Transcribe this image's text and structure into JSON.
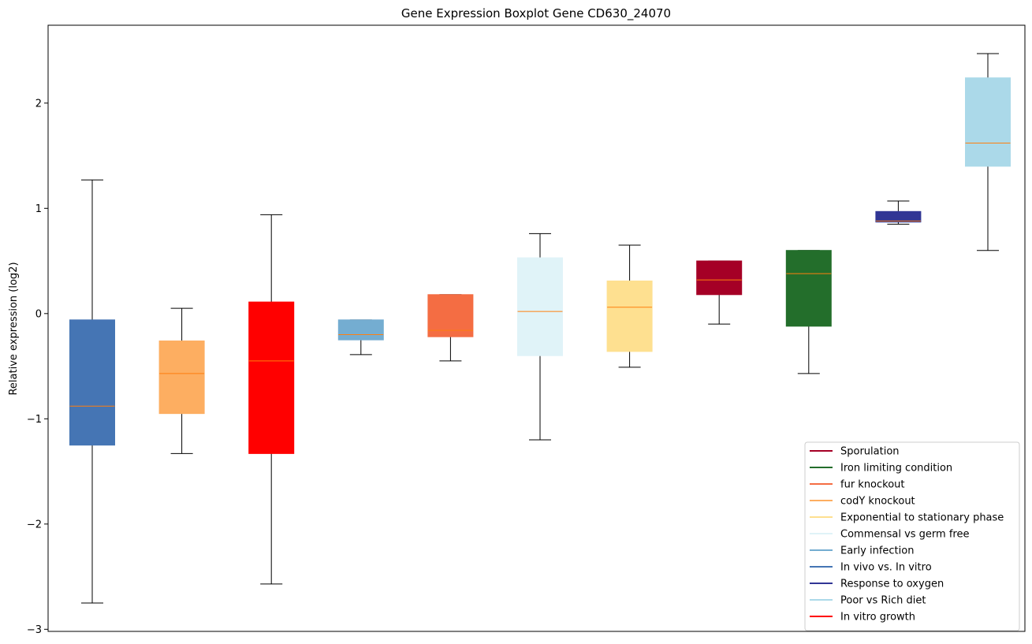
{
  "chart_data": {
    "type": "boxplot",
    "title": "Gene Expression Boxplot Gene CD630_24070",
    "xlabel": "",
    "ylabel": "Relative expression (log2)",
    "ylim": [
      -3.02,
      2.74
    ],
    "yticks": [
      -3,
      -2,
      -1,
      0,
      1,
      2
    ],
    "ytick_labels": [
      "−3",
      "−2",
      "−1",
      "0",
      "1",
      "2"
    ],
    "grid": false,
    "legend_position": "bottom-right",
    "median_color": "#ff7f0e",
    "boxes": [
      {
        "name": "In vivo vs. In vitro",
        "color": "#4575b4",
        "whisker_low": -2.75,
        "q1": -1.25,
        "median": -0.88,
        "q3": -0.06,
        "whisker_high": 1.27
      },
      {
        "name": "codY knockout",
        "color": "#fdae61",
        "whisker_low": -1.33,
        "q1": -0.95,
        "median": -0.57,
        "q3": -0.26,
        "whisker_high": 0.05
      },
      {
        "name": "In vitro growth",
        "color": "#ff0000",
        "whisker_low": -2.57,
        "q1": -1.33,
        "median": -0.45,
        "q3": 0.11,
        "whisker_high": 0.94
      },
      {
        "name": "Early infection",
        "color": "#74add1",
        "whisker_low": -0.39,
        "q1": -0.25,
        "median": -0.2,
        "q3": -0.06,
        "whisker_high": -0.06
      },
      {
        "name": "fur knockout",
        "color": "#f46d43",
        "whisker_low": -0.45,
        "q1": -0.22,
        "median": -0.16,
        "q3": 0.18,
        "whisker_high": 0.18
      },
      {
        "name": "Commensal vs germ free",
        "color": "#e0f3f8",
        "whisker_low": -1.2,
        "q1": -0.4,
        "median": 0.02,
        "q3": 0.53,
        "whisker_high": 0.76
      },
      {
        "name": "Exponential to stationary phase",
        "color": "#fee090",
        "whisker_low": -0.51,
        "q1": -0.36,
        "median": 0.06,
        "q3": 0.31,
        "whisker_high": 0.65
      },
      {
        "name": "Sporulation",
        "color": "#a50026",
        "whisker_low": -0.1,
        "q1": 0.18,
        "median": 0.32,
        "q3": 0.5,
        "whisker_high": 0.5
      },
      {
        "name": "Iron limiting condition",
        "color": "#236e2b",
        "whisker_low": -0.57,
        "q1": -0.12,
        "median": 0.38,
        "q3": 0.6,
        "whisker_high": 0.6
      },
      {
        "name": "Response to oxygen",
        "color": "#313695",
        "whisker_low": 0.85,
        "q1": 0.87,
        "median": 0.88,
        "q3": 0.97,
        "whisker_high": 1.07
      },
      {
        "name": "Poor vs Rich diet",
        "color": "#abd9e9",
        "whisker_low": 0.6,
        "q1": 1.4,
        "median": 1.62,
        "q3": 2.24,
        "whisker_high": 2.47
      }
    ],
    "legend": [
      {
        "label": "Sporulation",
        "color": "#a50026"
      },
      {
        "label": "Iron limiting condition",
        "color": "#236e2b"
      },
      {
        "label": "fur knockout",
        "color": "#f46d43"
      },
      {
        "label": "codY knockout",
        "color": "#fdae61"
      },
      {
        "label": "Exponential to stationary phase",
        "color": "#fee090"
      },
      {
        "label": "Commensal vs germ free",
        "color": "#e0f3f8"
      },
      {
        "label": "Early infection",
        "color": "#74add1"
      },
      {
        "label": "In vivo vs. In vitro",
        "color": "#4575b4"
      },
      {
        "label": "Response to oxygen",
        "color": "#313695"
      },
      {
        "label": "Poor vs Rich diet",
        "color": "#abd9e9"
      },
      {
        "label": "In vitro growth",
        "color": "#ff0000"
      }
    ]
  }
}
